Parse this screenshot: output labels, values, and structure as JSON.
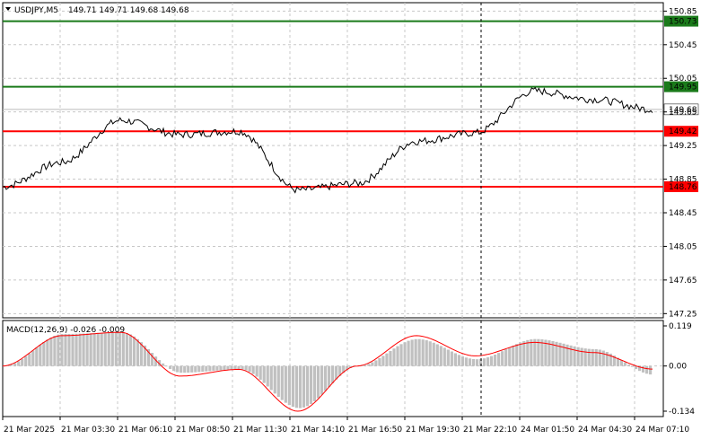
{
  "header": {
    "symbol": "USDJPY,M5",
    "ohlc": "149.71 149.71 149.68 149.68",
    "collapse_icon": "triangle-down-icon"
  },
  "price_axis": {
    "labels": [
      "150.85",
      "150.45",
      "150.05",
      "149.65",
      "149.25",
      "148.85",
      "148.45",
      "148.05",
      "147.65",
      "147.25"
    ]
  },
  "levels": [
    {
      "value": 150.73,
      "label": "150.73",
      "color": "#1a7a1a",
      "kind": "green"
    },
    {
      "value": 149.95,
      "label": "149.95",
      "color": "#1a7a1a",
      "kind": "green"
    },
    {
      "value": 149.68,
      "label": "149.68",
      "color": "#bbbbbb",
      "kind": "current"
    },
    {
      "value": 149.42,
      "label": "149.42",
      "color": "#ff0000",
      "kind": "red"
    },
    {
      "value": 148.76,
      "label": "148.76",
      "color": "#ff0000",
      "kind": "red"
    }
  ],
  "macd": {
    "header": "MACD(12,26,9) -0.026 -0.009",
    "labels": [
      "0.119",
      "0.00",
      "-0.134"
    ],
    "histogram_color": "#c0c0c0",
    "signal_color": "#ff0000"
  },
  "time_axis": {
    "labels": [
      "21 Mar 2025",
      "21 Mar 03:30",
      "21 Mar 06:10",
      "21 Mar 08:50",
      "21 Mar 11:30",
      "21 Mar 14:10",
      "21 Mar 16:50",
      "21 Mar 19:30",
      "21 Mar 22:10",
      "24 Mar 01:50",
      "24 Mar 04:30",
      "24 Mar 07:10"
    ]
  },
  "chart_data": {
    "type": "line",
    "title": "USDJPY,M5",
    "y_range": [
      147.2,
      150.95
    ],
    "x": [
      "21 Mar 2025",
      "21 Mar 03:30",
      "21 Mar 06:10",
      "21 Mar 08:50",
      "21 Mar 11:30",
      "21 Mar 14:10",
      "21 Mar 16:50",
      "21 Mar 19:30",
      "21 Mar 22:10",
      "24 Mar 01:50",
      "24 Mar 04:30",
      "24 Mar 07:10"
    ],
    "series": [
      {
        "name": "USDJPY",
        "values": [
          148.76,
          149.05,
          149.55,
          149.38,
          149.42,
          148.72,
          148.8,
          149.3,
          149.4,
          149.9,
          149.8,
          149.68
        ]
      }
    ],
    "macd": {
      "histogram": [
        0.0,
        0.095,
        0.1,
        -0.02,
        -0.01,
        -0.125,
        0.0,
        0.08,
        0.02,
        0.08,
        0.05,
        -0.026
      ],
      "signal": [
        0.0,
        0.09,
        0.1,
        -0.03,
        -0.01,
        -0.134,
        0.0,
        0.09,
        0.03,
        0.07,
        0.04,
        -0.009
      ]
    },
    "grid": true
  }
}
